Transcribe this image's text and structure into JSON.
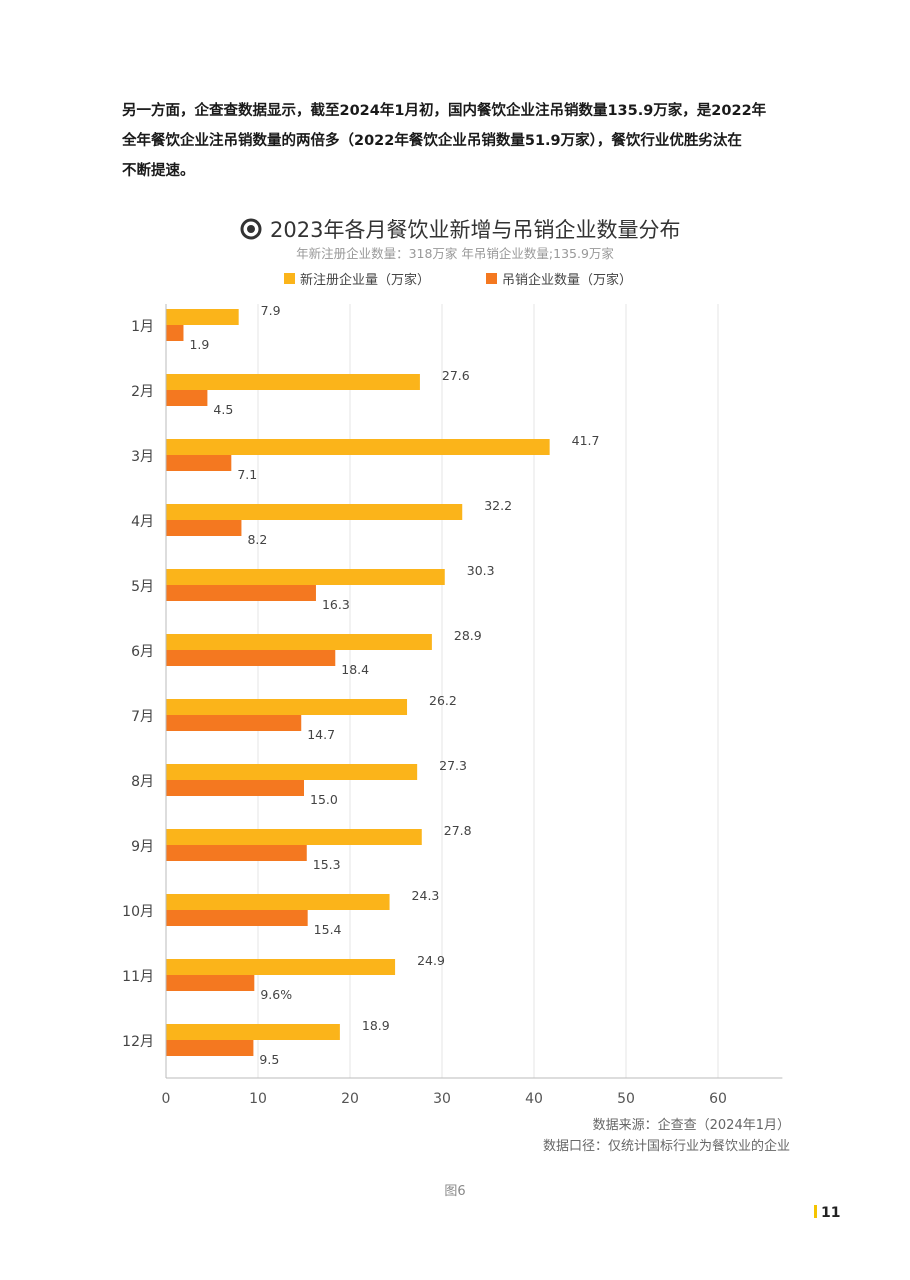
{
  "intro_lines": [
    "另一方面，企查查数据显示，截至2024年1月初，国内餐饮企业注吊销数量135.9万家，是2022年",
    "全年餐饮企业注吊销数量的两倍多（2022年餐饮企业吊销数量51.9万家），餐饮行业优胜劣汰在",
    "不断提速。"
  ],
  "chart_data": {
    "type": "bar",
    "orientation": "horizontal",
    "title": "2023年各月餐饮业新增与吊销企业数量分布",
    "subtitle": "年新注册企业数量：318万家   年吊销企业数量;135.9万家",
    "categories": [
      "1月",
      "2月",
      "3月",
      "4月",
      "5月",
      "6月",
      "7月",
      "8月",
      "9月",
      "10月",
      "11月",
      "12月"
    ],
    "series": [
      {
        "name": "新注册企业量（万家）",
        "color": "#FBB41A",
        "values": [
          7.9,
          27.6,
          41.7,
          32.2,
          30.3,
          28.9,
          26.2,
          27.3,
          27.8,
          24.3,
          24.9,
          18.9
        ],
        "labels": [
          "7.9",
          "27.6",
          "41.7",
          "32.2",
          "30.3",
          "28.9",
          "26.2",
          "27.3",
          "27.8",
          "24.3",
          "24.9",
          "18.9"
        ]
      },
      {
        "name": "吊销企业数量（万家）",
        "color": "#F47820",
        "values": [
          1.9,
          4.5,
          7.1,
          8.2,
          16.3,
          18.4,
          14.7,
          15.0,
          15.3,
          15.4,
          9.6,
          9.5
        ],
        "labels": [
          "1.9",
          "4.5",
          "7.1",
          "8.2",
          "16.3",
          "18.4",
          "14.7",
          "15.0",
          "15.3",
          "15.4",
          "9.6%",
          "9.5"
        ]
      }
    ],
    "x_ticks": [
      0,
      10,
      20,
      30,
      40,
      50,
      60
    ],
    "xlim": [
      0,
      67
    ],
    "grid": true,
    "legend_position": "top"
  },
  "source_lines": [
    "数据来源：企查查（2024年1月）",
    "数据口径：仅统计国标行业为餐饮业的企业"
  ],
  "figure_caption": "图6",
  "page_number": "11"
}
